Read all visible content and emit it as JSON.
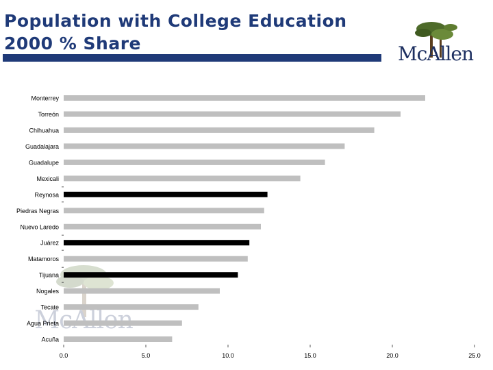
{
  "header": {
    "title_line1": "Population with College Education",
    "title_line2": "2000 % Share"
  },
  "logo": {
    "text": "McAllen",
    "icon": "mcallen-palm-tree-logo"
  },
  "colors": {
    "title": "#1f3a78",
    "bar_default": "#bfbfbf",
    "bar_highlight": "#000000"
  },
  "chart_data": {
    "type": "bar",
    "orientation": "horizontal",
    "title": "Population with College Education 2000 % Share",
    "xlabel": "",
    "ylabel": "",
    "xlim": [
      0,
      25
    ],
    "xticks": [
      "0.0",
      "5.0",
      "10.0",
      "15.0",
      "20.0",
      "25.0"
    ],
    "grid": false,
    "legend": "none",
    "categories": [
      "Monterrey",
      "Torreón",
      "Chihuahua",
      "Guadalajara",
      "Guadalupe",
      "Mexicali",
      "Reynosa",
      "Piedras Negras",
      "Nuevo Laredo",
      "Juárez",
      "Matamoros",
      "Tijuana",
      "Nogales",
      "Tecate",
      "Agua Prieta",
      "Acuña"
    ],
    "values": [
      22.0,
      20.5,
      18.9,
      17.1,
      15.9,
      14.4,
      12.4,
      12.2,
      12.0,
      11.3,
      11.2,
      10.6,
      9.5,
      8.2,
      7.2,
      6.6
    ],
    "highlighted": [
      "Reynosa",
      "Juárez",
      "Tijuana"
    ]
  }
}
